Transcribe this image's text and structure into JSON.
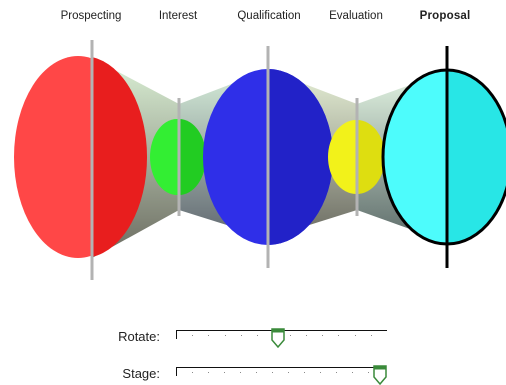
{
  "stages": [
    {
      "label": "Prospecting",
      "active": false
    },
    {
      "label": "Interest",
      "active": false
    },
    {
      "label": "Qualification",
      "active": false
    },
    {
      "label": "Evaluation",
      "active": false
    },
    {
      "label": "Proposal",
      "active": true
    }
  ],
  "colors": {
    "prospecting": "#ff3b3b",
    "interest": "#33ee33",
    "qualification": "#2f2fe8",
    "evaluation": "#f2f21a",
    "proposal": "#4dfcfc",
    "axis": "#b3b3b3",
    "selected_outline": "#000000",
    "thumb_accent": "#3a8a3a"
  },
  "controls": {
    "rotate": {
      "label": "Rotate:",
      "value_fraction": 0.47
    },
    "stage": {
      "label": "Stage:",
      "value_fraction": 1.0
    }
  }
}
